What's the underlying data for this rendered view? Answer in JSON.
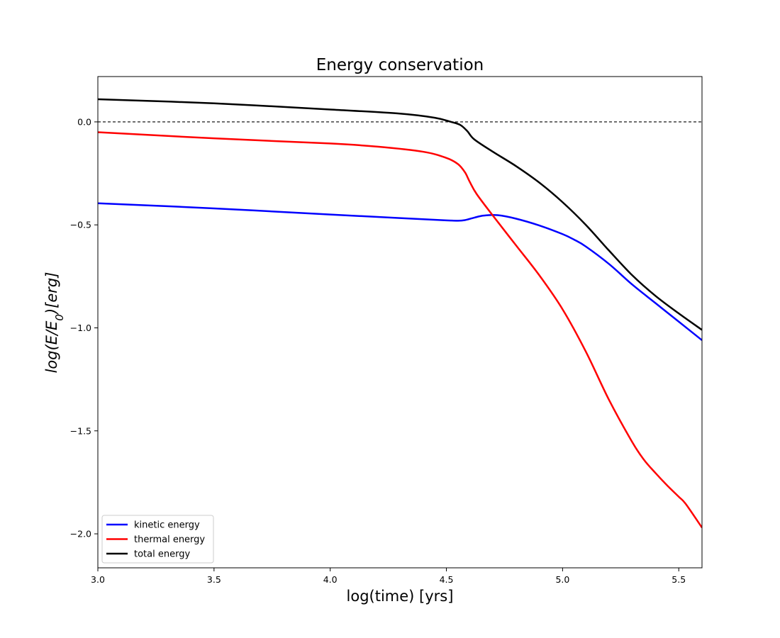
{
  "chart_data": {
    "type": "line",
    "title": "Energy conservation",
    "xlabel": "log(time) [yrs]",
    "ylabel": "log(E/E0)[erg]",
    "xlim": [
      3.0,
      5.6
    ],
    "ylim": [
      -2.165,
      0.22
    ],
    "xticks": [
      "3.0",
      "3.5",
      "4.0",
      "4.5",
      "5.0",
      "5.5"
    ],
    "yticks": [
      "0.0",
      "−0.5",
      "−1.0",
      "−1.5",
      "−2.0"
    ],
    "reference_line": {
      "y": 0.0,
      "style": "dashed",
      "color": "#000000"
    },
    "grid": false,
    "legend_position": "lower-left",
    "series": [
      {
        "name": "kinetic energy",
        "color": "#0000ff",
        "x": [
          3.0,
          3.5,
          4.0,
          4.3,
          4.5,
          4.55,
          4.58,
          4.62,
          4.66,
          4.72,
          4.8,
          4.9,
          5.0,
          5.05,
          5.1,
          5.2,
          5.3,
          5.4,
          5.5,
          5.6
        ],
        "y": [
          -0.395,
          -0.42,
          -0.45,
          -0.467,
          -0.478,
          -0.48,
          -0.477,
          -0.465,
          -0.455,
          -0.453,
          -0.47,
          -0.503,
          -0.545,
          -0.572,
          -0.605,
          -0.69,
          -0.79,
          -0.88,
          -0.97,
          -1.06
        ]
      },
      {
        "name": "thermal energy",
        "color": "#ff0000",
        "x": [
          3.0,
          3.5,
          4.0,
          4.2,
          4.4,
          4.5,
          4.55,
          4.58,
          4.6,
          4.63,
          4.7,
          4.8,
          4.9,
          5.0,
          5.1,
          5.2,
          5.3,
          5.35,
          5.4,
          5.45,
          5.5,
          5.53,
          5.6
        ],
        "y": [
          -0.05,
          -0.08,
          -0.105,
          -0.12,
          -0.145,
          -0.175,
          -0.205,
          -0.245,
          -0.29,
          -0.35,
          -0.455,
          -0.6,
          -0.745,
          -0.91,
          -1.115,
          -1.35,
          -1.555,
          -1.64,
          -1.705,
          -1.765,
          -1.82,
          -1.855,
          -1.97
        ]
      },
      {
        "name": "total energy",
        "color": "#000000",
        "x": [
          3.0,
          3.5,
          4.0,
          4.3,
          4.45,
          4.52,
          4.56,
          4.59,
          4.62,
          4.7,
          4.8,
          4.9,
          5.0,
          5.1,
          5.2,
          5.3,
          5.4,
          5.5,
          5.6
        ],
        "y": [
          0.11,
          0.09,
          0.06,
          0.04,
          0.02,
          0.0,
          -0.015,
          -0.045,
          -0.085,
          -0.145,
          -0.215,
          -0.295,
          -0.39,
          -0.5,
          -0.625,
          -0.745,
          -0.845,
          -0.93,
          -1.01
        ]
      }
    ]
  }
}
